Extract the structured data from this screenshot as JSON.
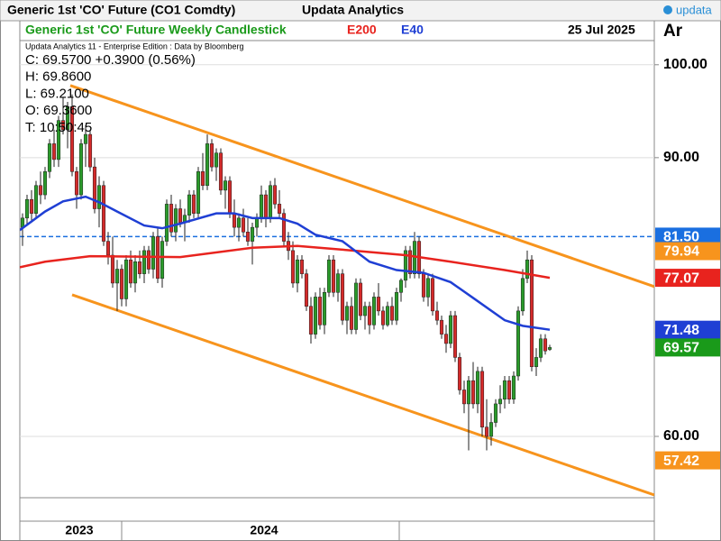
{
  "chart_data": {
    "type": "candlestick",
    "header": {
      "title": "Generic 1st 'CO' Future (CO1 Comdty)",
      "provider": "Updata Analytics",
      "logo": "updata"
    },
    "title": "Generic 1st 'CO' Future Weekly Candlestick",
    "date": "25 Jul 2025",
    "axis_title": "Ar",
    "source": "Updata Analytics 11 - Enterprise Edition : Data by Bloomberg",
    "info": [
      "C: 69.5700  +0.3900 (0.56%)",
      "H: 69.8600",
      "L: 69.2100",
      "O: 69.3600",
      "T: 10:50:45"
    ],
    "up_color": "#2a9a2a",
    "down_color": "#d42a2a",
    "ylim": [
      53.4,
      102.6
    ],
    "xlim": [
      -0.6,
      140.2
    ],
    "yticks": [
      {
        "value": 100,
        "label": "100.00"
      },
      {
        "value": 90,
        "label": "90.00"
      },
      {
        "value": 60,
        "label": "60.00"
      }
    ],
    "xticks": [
      {
        "value": 12.6,
        "label": "2023"
      },
      {
        "value": 53.6,
        "label": "2024"
      }
    ],
    "grid": true,
    "ohlc": [
      [
        82.5,
        84.0,
        80.5,
        83.5
      ],
      [
        83.5,
        86.0,
        82.8,
        85.5
      ],
      [
        85.5,
        86.5,
        83.0,
        84.0
      ],
      [
        84.0,
        87.5,
        83.5,
        87.0
      ],
      [
        87.0,
        88.5,
        85.0,
        86.0
      ],
      [
        86.0,
        89.0,
        85.5,
        88.5
      ],
      [
        88.5,
        92.0,
        87.8,
        91.5
      ],
      [
        91.5,
        93.0,
        89.0,
        89.8
      ],
      [
        89.8,
        94.5,
        89.0,
        94.0
      ],
      [
        94.0,
        96.5,
        92.5,
        93.0
      ],
      [
        93.0,
        96.0,
        91.0,
        95.5
      ],
      [
        95.5,
        96.8,
        88.0,
        88.5
      ],
      [
        88.5,
        89.0,
        84.5,
        86.0
      ],
      [
        86.0,
        92.0,
        85.5,
        91.5
      ],
      [
        91.5,
        93.5,
        89.0,
        92.5
      ],
      [
        92.5,
        93.0,
        88.5,
        89.0
      ],
      [
        89.0,
        90.0,
        84.0,
        84.5
      ],
      [
        84.5,
        88.0,
        82.5,
        87.0
      ],
      [
        87.0,
        87.5,
        80.5,
        81.0
      ],
      [
        81.0,
        82.0,
        78.5,
        79.5
      ],
      [
        79.5,
        81.5,
        76.0,
        76.5
      ],
      [
        76.5,
        79.0,
        73.5,
        78.0
      ],
      [
        78.0,
        78.5,
        74.0,
        74.8
      ],
      [
        74.8,
        79.5,
        74.0,
        79.0
      ],
      [
        79.0,
        80.0,
        76.0,
        76.5
      ],
      [
        76.5,
        79.5,
        75.5,
        78.8
      ],
      [
        78.8,
        80.0,
        77.0,
        77.5
      ],
      [
        77.5,
        80.5,
        76.5,
        80.0
      ],
      [
        80.0,
        80.5,
        77.5,
        78.0
      ],
      [
        78.0,
        82.0,
        77.0,
        81.5
      ],
      [
        81.5,
        82.5,
        76.5,
        77.0
      ],
      [
        77.0,
        81.5,
        76.0,
        81.0
      ],
      [
        81.0,
        85.5,
        80.5,
        85.0
      ],
      [
        85.0,
        86.0,
        81.5,
        82.0
      ],
      [
        82.0,
        85.0,
        81.0,
        84.5
      ],
      [
        84.5,
        85.5,
        82.5,
        83.0
      ],
      [
        83.0,
        84.5,
        81.0,
        83.8
      ],
      [
        83.8,
        86.5,
        83.0,
        86.0
      ],
      [
        86.0,
        86.5,
        83.5,
        84.0
      ],
      [
        84.0,
        89.0,
        83.5,
        88.5
      ],
      [
        88.5,
        90.5,
        86.5,
        87.0
      ],
      [
        87.0,
        92.5,
        86.5,
        91.5
      ],
      [
        91.5,
        92.0,
        88.5,
        89.0
      ],
      [
        89.0,
        91.0,
        87.5,
        90.5
      ],
      [
        90.5,
        91.0,
        86.0,
        86.5
      ],
      [
        86.5,
        88.0,
        84.5,
        87.5
      ],
      [
        87.5,
        88.0,
        83.5,
        84.0
      ],
      [
        84.0,
        85.5,
        81.5,
        82.5
      ],
      [
        82.5,
        84.0,
        81.0,
        83.5
      ],
      [
        83.5,
        84.5,
        81.5,
        82.0
      ],
      [
        82.0,
        83.5,
        80.5,
        81.0
      ],
      [
        81.0,
        83.0,
        78.5,
        82.5
      ],
      [
        82.5,
        84.0,
        81.5,
        83.5
      ],
      [
        83.5,
        87.0,
        83.0,
        86.0
      ],
      [
        86.0,
        86.5,
        82.5,
        83.5
      ],
      [
        83.5,
        87.5,
        83.0,
        87.0
      ],
      [
        87.0,
        87.8,
        84.5,
        85.0
      ],
      [
        85.0,
        86.5,
        83.5,
        84.0
      ],
      [
        84.0,
        84.5,
        80.5,
        81.0
      ],
      [
        81.0,
        82.0,
        79.0,
        80.0
      ],
      [
        80.0,
        81.0,
        76.0,
        76.5
      ],
      [
        76.5,
        79.5,
        75.5,
        79.0
      ],
      [
        79.0,
        79.5,
        77.0,
        77.5
      ],
      [
        77.5,
        78.0,
        73.5,
        74.0
      ],
      [
        74.0,
        75.0,
        70.0,
        71.0
      ],
      [
        71.0,
        75.5,
        70.5,
        75.0
      ],
      [
        75.0,
        76.0,
        71.5,
        72.0
      ],
      [
        72.0,
        76.0,
        71.0,
        75.5
      ],
      [
        75.5,
        79.5,
        75.0,
        79.0
      ],
      [
        79.0,
        79.5,
        75.0,
        75.5
      ],
      [
        75.5,
        78.0,
        74.5,
        77.5
      ],
      [
        77.5,
        78.0,
        72.0,
        72.5
      ],
      [
        72.5,
        74.5,
        71.0,
        74.0
      ],
      [
        74.0,
        75.0,
        71.0,
        71.5
      ],
      [
        71.5,
        77.0,
        71.0,
        76.5
      ],
      [
        76.5,
        77.0,
        72.5,
        73.0
      ],
      [
        73.0,
        74.5,
        71.5,
        74.0
      ],
      [
        74.0,
        74.5,
        71.0,
        72.0
      ],
      [
        72.0,
        75.5,
        71.5,
        75.0
      ],
      [
        75.0,
        76.5,
        73.0,
        73.5
      ],
      [
        73.5,
        74.0,
        71.5,
        72.0
      ],
      [
        72.0,
        74.5,
        71.8,
        74.0
      ],
      [
        74.0,
        75.0,
        72.0,
        72.5
      ],
      [
        72.5,
        76.0,
        72.0,
        75.5
      ],
      [
        75.5,
        77.0,
        74.5,
        76.8
      ],
      [
        76.8,
        80.5,
        76.0,
        80.0
      ],
      [
        80.0,
        80.5,
        77.0,
        77.5
      ],
      [
        77.5,
        82.0,
        77.0,
        81.0
      ],
      [
        81.0,
        81.5,
        77.0,
        77.5
      ],
      [
        77.5,
        78.0,
        74.5,
        75.0
      ],
      [
        75.0,
        77.5,
        74.0,
        77.0
      ],
      [
        77.0,
        77.5,
        73.0,
        73.5
      ],
      [
        73.5,
        74.5,
        72.0,
        72.5
      ],
      [
        72.5,
        73.0,
        70.5,
        71.0
      ],
      [
        71.0,
        72.0,
        69.0,
        70.0
      ],
      [
        70.0,
        73.5,
        69.5,
        73.0
      ],
      [
        73.0,
        73.5,
        68.0,
        68.5
      ],
      [
        68.5,
        69.0,
        64.5,
        65.0
      ],
      [
        65.0,
        66.0,
        62.5,
        63.5
      ],
      [
        63.5,
        66.5,
        58.5,
        66.0
      ],
      [
        66.0,
        68.0,
        63.0,
        63.5
      ],
      [
        63.5,
        67.5,
        62.5,
        67.0
      ],
      [
        67.0,
        67.5,
        60.0,
        61.0
      ],
      [
        61.0,
        64.0,
        58.5,
        60.0
      ],
      [
        60.0,
        62.5,
        59.0,
        61.5
      ],
      [
        61.5,
        64.0,
        61.0,
        63.5
      ],
      [
        63.5,
        65.5,
        62.5,
        64.0
      ],
      [
        64.0,
        66.5,
        63.0,
        66.0
      ],
      [
        66.0,
        66.5,
        63.5,
        64.0
      ],
      [
        64.0,
        67.0,
        63.5,
        66.5
      ],
      [
        66.5,
        74.0,
        66.0,
        73.5
      ],
      [
        73.5,
        78.0,
        73.0,
        77.0
      ],
      [
        77.0,
        80.0,
        76.5,
        79.0
      ],
      [
        79.0,
        79.5,
        67.0,
        67.5
      ],
      [
        67.5,
        69.5,
        66.5,
        68.5
      ],
      [
        68.5,
        71.0,
        68.0,
        70.5
      ],
      [
        70.5,
        71.0,
        68.8,
        69.2
      ],
      [
        69.36,
        69.86,
        69.21,
        69.57
      ]
    ],
    "series": [
      {
        "name": "E200",
        "color": "#e8231e",
        "x": [
          -0.6,
          5,
          15,
          35,
          51,
          61,
          71,
          85,
          95,
          107,
          117
        ],
        "values": [
          78.2,
          78.8,
          79.4,
          79.3,
          80.3,
          80.5,
          80.1,
          79.5,
          78.8,
          77.9,
          77.07
        ]
      },
      {
        "name": "E40",
        "color": "#1f3fd4",
        "x": [
          -0.6,
          5,
          9,
          14,
          17,
          21,
          27,
          31,
          35,
          43,
          47,
          51,
          57,
          61,
          65,
          71,
          77,
          83,
          89,
          95,
          100,
          107,
          111,
          117
        ],
        "values": [
          82.2,
          84.2,
          85.3,
          85.8,
          85.2,
          84.2,
          82.7,
          82.4,
          82.9,
          84,
          84,
          83.5,
          83.5,
          82.9,
          81.7,
          81,
          78.8,
          77.9,
          77.6,
          76.6,
          74.9,
          72.5,
          71.9,
          71.48
        ]
      }
    ],
    "channels": [
      {
        "color": "#f7941d",
        "x": [
          10.6,
          140.2
        ],
        "values": [
          97.77,
          76.12
        ]
      },
      {
        "color": "#f7941d",
        "x": [
          11,
          140.2
        ],
        "values": [
          75.24,
          53.69
        ]
      }
    ],
    "price_labels": [
      {
        "value": 81.5,
        "label": "81.50",
        "color": "#1a6fe0",
        "line": "dashed"
      },
      {
        "value": 79.94,
        "color": "#f7941d"
      },
      {
        "value": 77.07,
        "color": "#e8231e"
      },
      {
        "value": 71.48,
        "color": "#1f3fd4"
      },
      {
        "value": 69.57,
        "color": "#1a9a1a"
      },
      {
        "value": 57.42,
        "color": "#f7941d"
      }
    ]
  }
}
